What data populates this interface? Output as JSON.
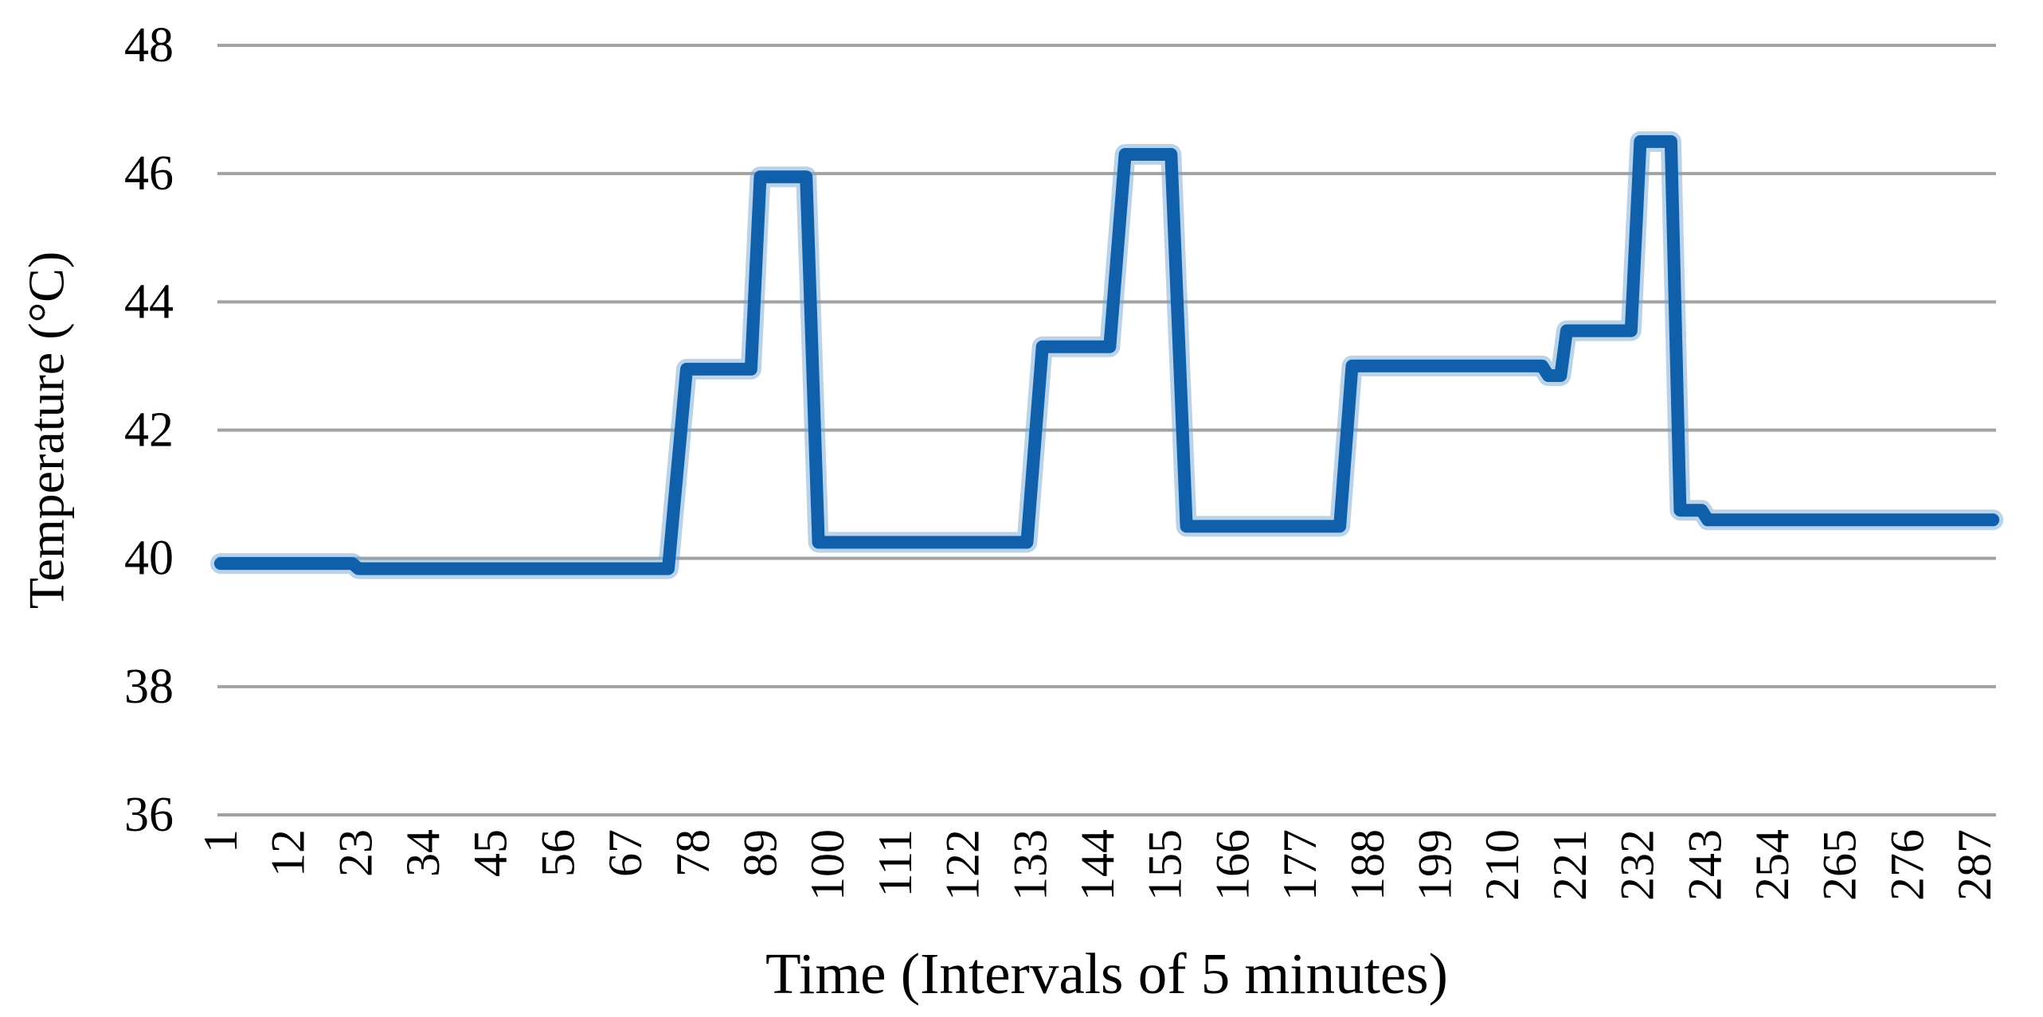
{
  "chart_data": {
    "type": "line",
    "title": "",
    "xlabel": "Time (Intervals of 5 minutes)",
    "ylabel": "Temperature (°C)",
    "x_tick_labels": [
      1,
      12,
      23,
      34,
      45,
      56,
      67,
      78,
      89,
      100,
      111,
      122,
      133,
      144,
      155,
      166,
      177,
      188,
      199,
      210,
      221,
      232,
      243,
      254,
      265,
      276,
      287
    ],
    "y_tick_labels": [
      36,
      38,
      40,
      42,
      44,
      46,
      48
    ],
    "ylim": [
      36,
      48
    ],
    "xlim": [
      1,
      290
    ],
    "n_points": 290,
    "grid": "horizontal-only",
    "legend": "none",
    "series": [
      {
        "name": "Temperature",
        "color": "#0f5fab",
        "step_points": [
          [
            1,
            39.92
          ],
          [
            22.5,
            39.92
          ],
          [
            23.5,
            39.84
          ],
          [
            74,
            39.84
          ],
          [
            77,
            42.95
          ],
          [
            87.5,
            42.95
          ],
          [
            89,
            45.95
          ],
          [
            96.5,
            45.95
          ],
          [
            98.5,
            40.25
          ],
          [
            132.5,
            40.25
          ],
          [
            135,
            43.3
          ],
          [
            146,
            43.3
          ],
          [
            148.5,
            46.3
          ],
          [
            156,
            46.3
          ],
          [
            158.5,
            40.5
          ],
          [
            183.5,
            40.5
          ],
          [
            185.5,
            43.0
          ],
          [
            216.5,
            43.0
          ],
          [
            217.5,
            42.85
          ],
          [
            219.5,
            42.85
          ],
          [
            220.5,
            43.55
          ],
          [
            231,
            43.55
          ],
          [
            232.5,
            46.5
          ],
          [
            237.5,
            46.5
          ],
          [
            239,
            40.75
          ],
          [
            242.5,
            40.75
          ],
          [
            243.5,
            40.6
          ],
          [
            290,
            40.6
          ]
        ]
      }
    ]
  },
  "colors": {
    "line": "#0f5fab",
    "line_halo": "#74a7d8",
    "gridline": "#a2a2a2",
    "text": "#000000",
    "background": "#ffffff"
  }
}
